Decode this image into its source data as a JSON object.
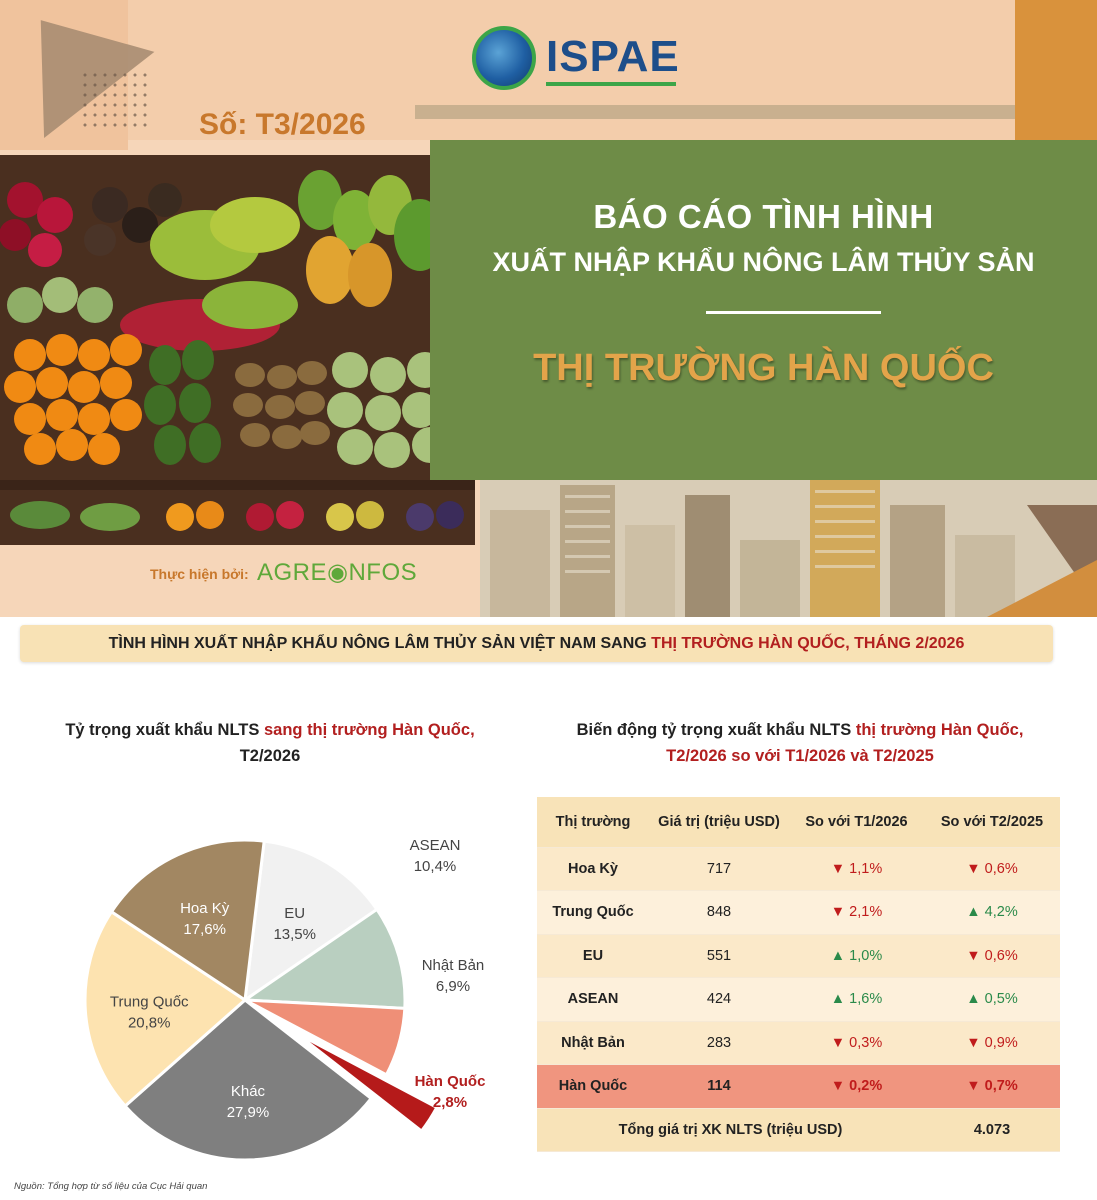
{
  "header": {
    "logo_text": "ISPAE",
    "issue": "Số: T3/2026",
    "title_line1": "BÁO CÁO TÌNH HÌNH",
    "title_line2": "XUẤT NHẬP KHẨU NÔNG LÂM THỦY SẢN",
    "title_market": "THỊ TRƯỜNG HÀN QUỐC",
    "produced_by_label": "Thực hiện bởi:",
    "produced_by_logo": "AGRE◉NFOS"
  },
  "subheader": {
    "text_main": "TÌNH HÌNH XUẤT NHẬP KHẨU NÔNG LÂM THỦY SẢN VIỆT NAM SANG ",
    "text_highlight": "THỊ TRƯỜNG HÀN QUỐC, THÁNG 2/2026"
  },
  "pie": {
    "title_part1": "Tỷ trọng xuất khẩu NLTS ",
    "title_highlight": "sang thị trường Hàn Quốc,",
    "title_part2": "T2/2026"
  },
  "chart_data": {
    "type": "pie",
    "slices": [
      {
        "label": "EU",
        "value": 13.5,
        "display": "13,5%",
        "color": "#f1f1f1"
      },
      {
        "label": "ASEAN",
        "value": 10.4,
        "display": "10,4%",
        "color": "#b9cfc0"
      },
      {
        "label": "Nhật Bản",
        "value": 6.9,
        "display": "6,9%",
        "color": "#ef8f77"
      },
      {
        "label": "Hàn Quốc",
        "value": 2.8,
        "display": "2,8%",
        "color": "#b51a1a"
      },
      {
        "label": "Khác",
        "value": 27.9,
        "display": "27,9%",
        "color": "#7f7f7f"
      },
      {
        "label": "Trung Quốc",
        "value": 20.8,
        "display": "20,8%",
        "color": "#fde3b0"
      },
      {
        "label": "Hoa Kỳ",
        "value": 17.6,
        "display": "17,6%",
        "color": "#a28762"
      }
    ]
  },
  "table": {
    "title_part1": "Biến động tỷ trọng xuất khẩu NLTS ",
    "title_highlight": "thị trường Hàn Quốc,",
    "title_line2": "T2/2026 so với T1/2026 và T2/2025",
    "headers": [
      "Thị trường",
      "Giá trị (triệu USD)",
      "So với T1/2026",
      "So với T2/2025"
    ],
    "rows": [
      {
        "market": "Hoa Kỳ",
        "value": "717",
        "vs_t1": "▼ 1,1%",
        "vs_t1_dir": "dn",
        "vs_t2": "▼ 0,6%",
        "vs_t2_dir": "dn"
      },
      {
        "market": "Trung Quốc",
        "value": "848",
        "vs_t1": "▼ 2,1%",
        "vs_t1_dir": "dn",
        "vs_t2": "▲ 4,2%",
        "vs_t2_dir": "up"
      },
      {
        "market": "EU",
        "value": "551",
        "vs_t1": "▲ 1,0%",
        "vs_t1_dir": "up",
        "vs_t2": "▼ 0,6%",
        "vs_t2_dir": "dn"
      },
      {
        "market": "ASEAN",
        "value": "424",
        "vs_t1": "▲ 1,6%",
        "vs_t1_dir": "up",
        "vs_t2": "▲ 0,5%",
        "vs_t2_dir": "up"
      },
      {
        "market": "Nhật Bản",
        "value": "283",
        "vs_t1": "▼ 0,3%",
        "vs_t1_dir": "dn",
        "vs_t2": "▼ 0,9%",
        "vs_t2_dir": "dn"
      },
      {
        "market": "Hàn Quốc",
        "value": "114",
        "vs_t1": "▼ 0,2%",
        "vs_t1_dir": "dn",
        "vs_t2": "▼ 0,7%",
        "vs_t2_dir": "dn"
      }
    ],
    "total_label": "Tổng giá trị XK NLTS (triệu USD)",
    "total_value": "4.073"
  },
  "source": "Nguồn: Tổng hợp từ số liệu của Cục Hải quan"
}
